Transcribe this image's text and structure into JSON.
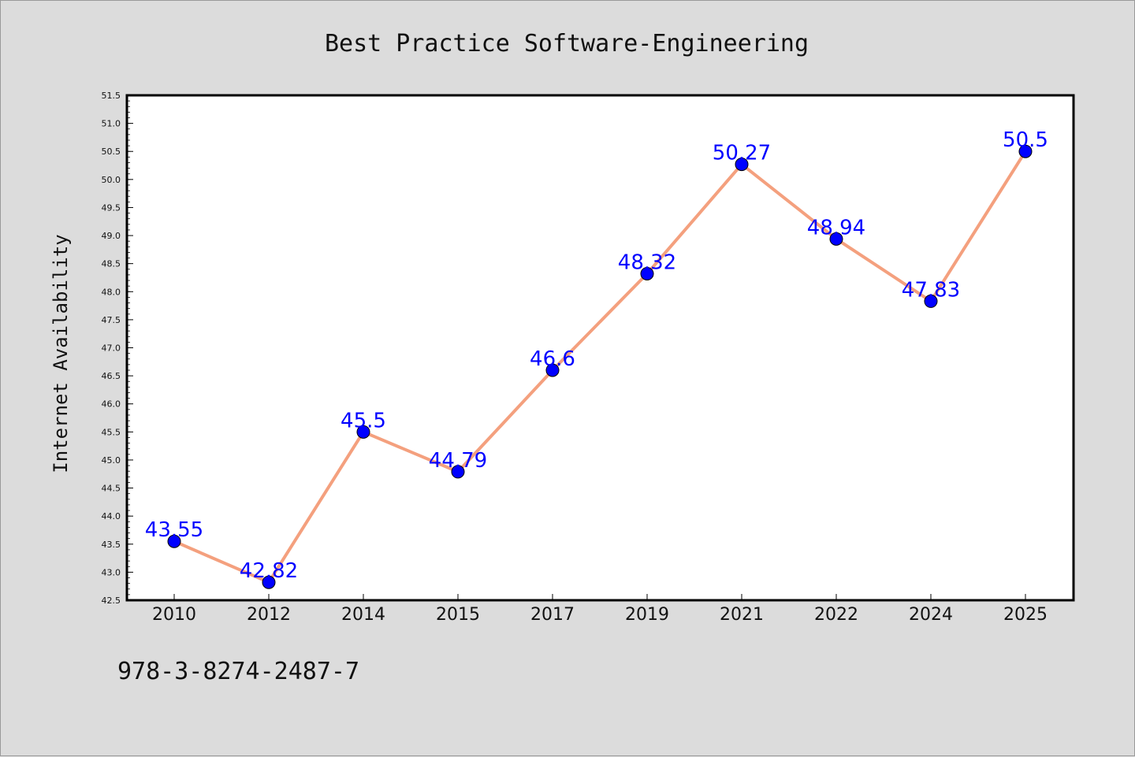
{
  "chart_data": {
    "type": "line",
    "title": "Best Practice Software-Engineering",
    "xlabel": "",
    "ylabel": "Internet Availability",
    "categories": [
      "2010",
      "2012",
      "2014",
      "2015",
      "2017",
      "2019",
      "2021",
      "2022",
      "2024",
      "2025"
    ],
    "series": [
      {
        "values": [
          43.55,
          42.82,
          45.5,
          44.79,
          46.6,
          48.32,
          50.27,
          48.94,
          47.83,
          50.5
        ]
      }
    ],
    "data_labels": [
      "43.55",
      "42.82",
      "45.5",
      "44.79",
      "46.6",
      "48.32",
      "50.27",
      "48.94",
      "47.83",
      "50.5"
    ],
    "yticks": [
      "42.5",
      "43.0",
      "43.5",
      "44.0",
      "44.5",
      "45.0",
      "45.5",
      "46.0",
      "46.5",
      "47.0",
      "47.5",
      "48.0",
      "48.5",
      "49.0",
      "49.5",
      "50.0",
      "50.5",
      "51.0",
      "51.5"
    ],
    "ylim": [
      42.5,
      51.5
    ],
    "grid": false,
    "line_color": "#f4a07e",
    "marker_color": "#0000ff",
    "label_color": "#0000ff",
    "background_color": "#dcdcdc",
    "plot_background": "#ffffff"
  },
  "footnote": "978-3-8274-2487-7"
}
